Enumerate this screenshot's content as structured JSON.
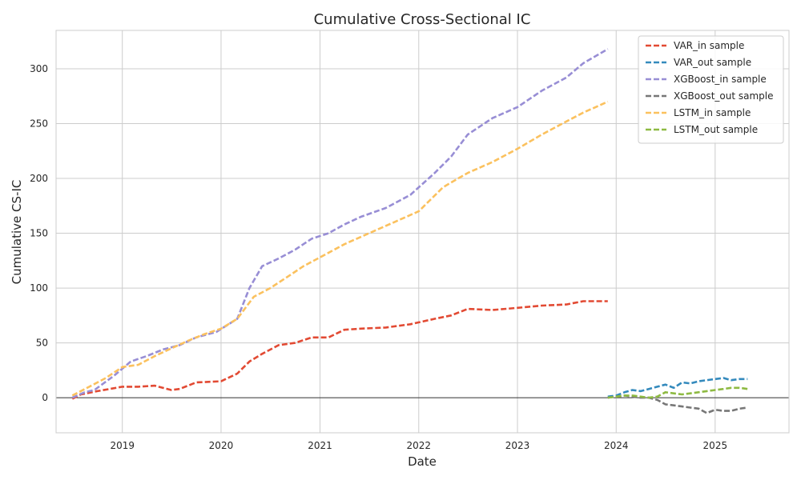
{
  "chart_data": {
    "type": "line",
    "title": "Cumulative Cross-Sectional IC",
    "xlabel": "Date",
    "ylabel": "Cumulative CS-IC",
    "xlim": [
      "2018-05-01",
      "2025-10-01"
    ],
    "ylim": [
      -32,
      335
    ],
    "x_ticks": [
      "2019",
      "2020",
      "2021",
      "2022",
      "2023",
      "2024",
      "2025"
    ],
    "y_ticks": [
      0,
      50,
      100,
      150,
      200,
      250,
      300
    ],
    "grid": true,
    "zero_line": true,
    "legend_position": "top-right",
    "series": [
      {
        "name": "VAR_in sample",
        "color": "#E24A33",
        "style": "dashed",
        "x": [
          "2018-06-30",
          "2018-08-01",
          "2018-10-01",
          "2019-01-01",
          "2019-03-01",
          "2019-05-01",
          "2019-07-01",
          "2019-08-01",
          "2019-10-01",
          "2020-01-01",
          "2020-03-01",
          "2020-04-15",
          "2020-06-01",
          "2020-08-01",
          "2020-10-01",
          "2020-12-01",
          "2021-02-01",
          "2021-04-01",
          "2021-06-01",
          "2021-09-01",
          "2021-12-01",
          "2022-03-01",
          "2022-05-01",
          "2022-07-01",
          "2022-10-01",
          "2023-01-01",
          "2023-04-01",
          "2023-07-01",
          "2023-09-01",
          "2023-12-01"
        ],
        "y": [
          -1,
          3,
          6,
          10,
          10,
          11,
          7,
          8,
          14,
          15,
          22,
          33,
          40,
          48,
          50,
          55,
          55,
          62,
          63,
          64,
          67,
          72,
          75,
          81,
          80,
          82,
          84,
          85,
          88,
          88
        ]
      },
      {
        "name": "VAR_out sample",
        "color": "#348ABD",
        "style": "dashed",
        "x": [
          "2023-12-01",
          "2024-01-01",
          "2024-02-01",
          "2024-03-01",
          "2024-04-01",
          "2024-05-01",
          "2024-06-01",
          "2024-07-01",
          "2024-08-01",
          "2024-09-01",
          "2024-10-01",
          "2024-11-01",
          "2024-12-01",
          "2025-01-01",
          "2025-02-01",
          "2025-03-01",
          "2025-04-01",
          "2025-05-01"
        ],
        "y": [
          1,
          2,
          5,
          7,
          6,
          8,
          10,
          12,
          9,
          14,
          13,
          15,
          16,
          17,
          18,
          16,
          17,
          17
        ]
      },
      {
        "name": "XGBoost_in sample",
        "color": "#988ED5",
        "style": "dashed",
        "x": [
          "2018-06-30",
          "2018-08-15",
          "2018-09-20",
          "2018-12-01",
          "2019-02-01",
          "2019-04-01",
          "2019-06-01",
          "2019-08-01",
          "2019-10-01",
          "2019-12-15",
          "2020-03-01",
          "2020-04-15",
          "2020-06-01",
          "2020-08-01",
          "2020-10-01",
          "2020-12-01",
          "2021-02-01",
          "2021-04-01",
          "2021-06-01",
          "2021-09-01",
          "2021-12-01",
          "2022-03-01",
          "2022-05-01",
          "2022-07-01",
          "2022-10-01",
          "2023-01-01",
          "2023-04-01",
          "2023-07-01",
          "2023-09-01",
          "2023-12-01"
        ],
        "y": [
          0,
          5,
          7,
          20,
          33,
          38,
          44,
          48,
          55,
          60,
          72,
          100,
          120,
          127,
          135,
          145,
          150,
          158,
          165,
          173,
          185,
          205,
          220,
          240,
          255,
          265,
          280,
          292,
          305,
          318
        ]
      },
      {
        "name": "XGBoost_out sample",
        "color": "#777777",
        "style": "dashed",
        "x": [
          "2023-12-01",
          "2024-01-01",
          "2024-02-01",
          "2024-03-01",
          "2024-04-01",
          "2024-05-01",
          "2024-06-01",
          "2024-07-01",
          "2024-08-01",
          "2024-09-01",
          "2024-10-01",
          "2024-11-01",
          "2024-12-01",
          "2025-01-01",
          "2025-02-01",
          "2025-03-01",
          "2025-04-01",
          "2025-05-01"
        ],
        "y": [
          0,
          1,
          2,
          1,
          0,
          0,
          -2,
          -6,
          -7,
          -8,
          -9,
          -10,
          -14,
          -11,
          -12,
          -12,
          -10,
          -9
        ]
      },
      {
        "name": "LSTM_in sample",
        "color": "#FBC15E",
        "style": "dashed",
        "x": [
          "2018-06-30",
          "2018-09-01",
          "2018-11-01",
          "2019-01-01",
          "2019-03-01",
          "2019-05-01",
          "2019-07-01",
          "2019-09-01",
          "2019-11-01",
          "2020-01-01",
          "2020-03-01",
          "2020-05-01",
          "2020-07-01",
          "2020-09-01",
          "2020-11-01",
          "2021-01-01",
          "2021-04-01",
          "2021-07-01",
          "2021-10-01",
          "2022-01-01",
          "2022-04-01",
          "2022-07-01",
          "2022-10-01",
          "2023-01-01",
          "2023-04-01",
          "2023-07-01",
          "2023-09-01",
          "2023-12-01"
        ],
        "y": [
          2,
          10,
          18,
          28,
          30,
          38,
          45,
          52,
          58,
          63,
          72,
          92,
          100,
          110,
          120,
          128,
          140,
          150,
          160,
          170,
          192,
          205,
          215,
          227,
          240,
          252,
          260,
          270
        ]
      },
      {
        "name": "LSTM_out sample",
        "color": "#8EBA42",
        "style": "dashed",
        "x": [
          "2023-12-01",
          "2024-01-01",
          "2024-02-01",
          "2024-03-01",
          "2024-04-01",
          "2024-05-01",
          "2024-06-01",
          "2024-07-01",
          "2024-08-01",
          "2024-09-01",
          "2024-10-01",
          "2024-11-01",
          "2024-12-01",
          "2025-01-01",
          "2025-02-01",
          "2025-03-01",
          "2025-04-01",
          "2025-05-01"
        ],
        "y": [
          0,
          1,
          2,
          2,
          1,
          0,
          1,
          5,
          4,
          3,
          4,
          5,
          6,
          7,
          8,
          9,
          9,
          8
        ]
      }
    ]
  }
}
